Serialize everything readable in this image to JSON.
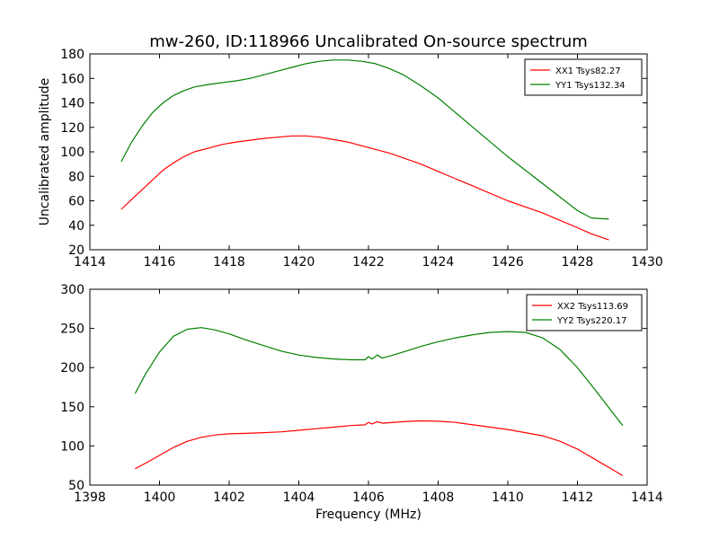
{
  "figure": {
    "title": "mw-260, ID:118966 Uncalibrated On-source spectrum"
  },
  "chart_data": [
    {
      "type": "line",
      "title": "mw-260, ID:118966 Uncalibrated On-source spectrum",
      "xlabel": "",
      "ylabel": "Uncalibrated amplitude",
      "xlim": [
        1414,
        1430
      ],
      "ylim": [
        20,
        180
      ],
      "xticks": [
        1414,
        1416,
        1418,
        1420,
        1422,
        1424,
        1426,
        1428,
        1430
      ],
      "yticks": [
        20,
        40,
        60,
        80,
        100,
        120,
        140,
        160,
        180
      ],
      "legend_position": "top-right",
      "grid": false,
      "series": [
        {
          "name": "XX1 Tsys82.27",
          "color": "#ff0000",
          "x": [
            1414.9,
            1415.2,
            1415.5,
            1415.8,
            1416.1,
            1416.4,
            1416.7,
            1417.0,
            1417.4,
            1417.8,
            1418.2,
            1418.6,
            1419.0,
            1419.4,
            1419.8,
            1420.2,
            1420.6,
            1421.0,
            1421.4,
            1421.8,
            1422.2,
            1422.6,
            1423.0,
            1423.5,
            1424.0,
            1424.5,
            1425.0,
            1425.5,
            1426.0,
            1426.5,
            1427.0,
            1427.5,
            1428.0,
            1428.4,
            1428.9
          ],
          "y": [
            53,
            61,
            69,
            77,
            85,
            91,
            96,
            100,
            103,
            106,
            108,
            109.5,
            111,
            112,
            113,
            113,
            112,
            110,
            108,
            105,
            102,
            99,
            95,
            90,
            84,
            78,
            72,
            66,
            60,
            55,
            50,
            44,
            38,
            33,
            28
          ]
        },
        {
          "name": "YY1 Tsys132.34",
          "color": "#008000",
          "x": [
            1414.9,
            1415.2,
            1415.5,
            1415.8,
            1416.1,
            1416.4,
            1416.7,
            1417.0,
            1417.4,
            1417.8,
            1418.2,
            1418.6,
            1419.0,
            1419.4,
            1419.8,
            1420.2,
            1420.6,
            1421.0,
            1421.4,
            1421.8,
            1422.2,
            1422.6,
            1423.0,
            1423.5,
            1424.0,
            1424.5,
            1425.0,
            1425.5,
            1426.0,
            1426.5,
            1427.0,
            1427.5,
            1428.0,
            1428.4,
            1428.9
          ],
          "y": [
            92,
            108,
            121,
            132,
            140,
            146,
            150,
            153,
            155,
            156.5,
            158,
            160,
            163,
            166,
            169,
            172,
            174,
            175,
            175,
            174,
            172,
            168,
            163,
            154,
            144,
            132,
            120,
            108,
            96,
            85,
            74,
            63,
            52,
            46,
            45
          ]
        }
      ]
    },
    {
      "type": "line",
      "title": "",
      "xlabel": "Frequency (MHz)",
      "ylabel": "",
      "xlim": [
        1398,
        1414
      ],
      "ylim": [
        50,
        300
      ],
      "xticks": [
        1398,
        1400,
        1402,
        1404,
        1406,
        1408,
        1410,
        1412,
        1414
      ],
      "yticks": [
        50,
        100,
        150,
        200,
        250,
        300
      ],
      "legend_position": "top-right",
      "grid": false,
      "series": [
        {
          "name": "XX2 Tsys113.69",
          "color": "#ff0000",
          "x": [
            1399.3,
            1399.6,
            1400.0,
            1400.4,
            1400.8,
            1401.2,
            1401.6,
            1402.0,
            1402.5,
            1403.0,
            1403.5,
            1404.0,
            1404.5,
            1405.0,
            1405.5,
            1405.9,
            1406.0,
            1406.1,
            1406.25,
            1406.4,
            1407.0,
            1407.5,
            1408.0,
            1408.5,
            1409.0,
            1409.5,
            1410.0,
            1410.5,
            1411.0,
            1411.5,
            1412.0,
            1412.5,
            1413.0,
            1413.3
          ],
          "y": [
            71,
            78,
            88,
            98,
            106,
            111,
            114,
            115.5,
            116,
            117,
            118,
            120,
            122,
            124,
            126,
            127,
            130,
            128,
            131,
            129,
            131,
            132,
            131.5,
            130,
            127,
            124,
            121,
            117,
            113,
            106,
            96,
            83,
            70,
            62
          ]
        },
        {
          "name": "YY2 Tsys220.17",
          "color": "#008000",
          "x": [
            1399.3,
            1399.6,
            1400.0,
            1400.4,
            1400.8,
            1401.2,
            1401.6,
            1402.0,
            1402.5,
            1403.0,
            1403.5,
            1404.0,
            1404.5,
            1405.0,
            1405.5,
            1405.9,
            1406.0,
            1406.1,
            1406.25,
            1406.4,
            1407.0,
            1407.5,
            1408.0,
            1408.5,
            1409.0,
            1409.5,
            1410.0,
            1410.5,
            1411.0,
            1411.5,
            1412.0,
            1412.5,
            1413.0,
            1413.3
          ],
          "y": [
            167,
            192,
            220,
            240,
            249,
            251,
            248,
            243,
            235,
            228,
            221,
            216,
            213,
            211,
            210,
            210,
            214,
            211,
            216,
            212,
            220,
            227,
            233,
            238,
            242,
            245,
            246,
            245,
            238,
            223,
            200,
            172,
            143,
            126
          ]
        }
      ]
    }
  ]
}
